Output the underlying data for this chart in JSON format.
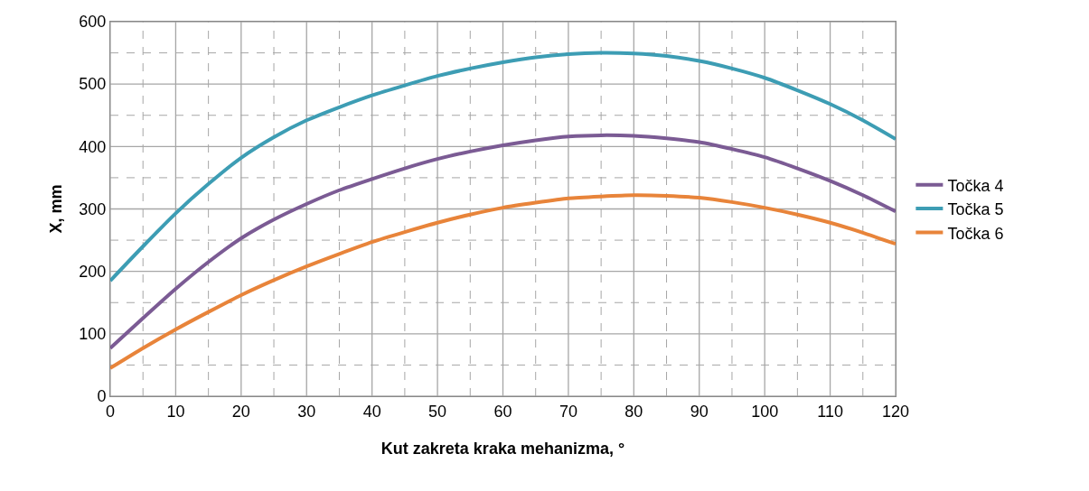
{
  "chart_data": {
    "type": "line",
    "xlabel": "Kut zakreta kraka mehanizma, °",
    "ylabel": "X, mm",
    "x": [
      0,
      5,
      10,
      15,
      20,
      25,
      30,
      35,
      40,
      45,
      50,
      55,
      60,
      65,
      70,
      75,
      80,
      85,
      90,
      95,
      100,
      105,
      110,
      115,
      120
    ],
    "series": [
      {
        "name": "Točka 4",
        "color": "#7b5b94",
        "values": [
          77,
          125,
          172,
          215,
          253,
          283,
          308,
          330,
          348,
          365,
          380,
          392,
          402,
          410,
          416,
          418,
          417,
          413,
          407,
          396,
          383,
          365,
          345,
          322,
          296
        ]
      },
      {
        "name": "Točka 5",
        "color": "#3d9db4",
        "values": [
          185,
          240,
          293,
          340,
          382,
          415,
          442,
          463,
          482,
          498,
          513,
          525,
          535,
          543,
          548,
          550,
          549,
          545,
          537,
          525,
          510,
          490,
          468,
          442,
          412
        ]
      },
      {
        "name": "Točka 6",
        "color": "#e8843a",
        "values": [
          45,
          77,
          107,
          135,
          162,
          186,
          208,
          228,
          247,
          263,
          278,
          291,
          302,
          310,
          317,
          320,
          322,
          321,
          318,
          311,
          302,
          291,
          278,
          262,
          244
        ]
      }
    ],
    "xlim": [
      0,
      120
    ],
    "xticks": [
      0,
      {
        "value": 5,
        "label": null
      },
      10,
      {
        "value": 15,
        "label": null
      },
      20,
      {
        "value": 25,
        "label": null
      },
      30,
      {
        "value": 35,
        "label": null
      },
      40,
      {
        "value": 45,
        "label": null
      },
      50,
      {
        "value": 55,
        "label": null
      },
      60,
      {
        "value": 65,
        "label": null
      },
      70,
      {
        "value": 75,
        "label": null
      },
      80,
      {
        "value": 85,
        "label": null
      },
      90,
      {
        "value": 95,
        "label": null
      },
      100,
      {
        "value": 105,
        "label": null
      },
      110,
      {
        "value": 115,
        "label": null
      },
      120
    ],
    "ylim": [
      0,
      600
    ],
    "yticks": [
      0,
      {
        "value": 50,
        "label": null
      },
      100,
      {
        "value": 150,
        "label": null
      },
      200,
      {
        "value": 250,
        "label": null
      },
      300,
      {
        "value": 350,
        "label": null
      },
      400,
      {
        "value": 450,
        "label": null
      },
      500,
      {
        "value": 550,
        "label": null
      },
      600
    ],
    "grid": true,
    "legend": "right",
    "marker": "none",
    "line_style": "solid"
  }
}
